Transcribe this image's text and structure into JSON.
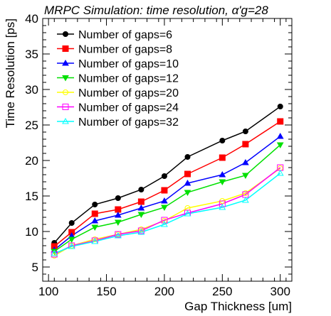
{
  "chart_data": {
    "type": "line",
    "title": "MRPC Simulation: time resolution, α'g=28",
    "xlabel": "Gap Thickness [um]",
    "ylabel": "Time Resolution [ps]",
    "xlim": [
      95,
      310
    ],
    "ylim": [
      3,
      40
    ],
    "xticks": [
      100,
      150,
      200,
      250,
      300
    ],
    "yticks": [
      5,
      10,
      15,
      20,
      25,
      30,
      35,
      40
    ],
    "grid": false,
    "legend_position": "top-left",
    "x": [
      105,
      120,
      140,
      160,
      180,
      200,
      220,
      250,
      270,
      300
    ],
    "series": [
      {
        "name": "Number of gaps=6",
        "color": "#000000",
        "marker": "circle",
        "values": [
          8.4,
          11.2,
          13.8,
          14.7,
          15.9,
          17.8,
          20.5,
          22.8,
          24.1,
          27.6
        ]
      },
      {
        "name": "Number of gaps=8",
        "color": "#ff0000",
        "marker": "square",
        "values": [
          7.9,
          9.9,
          12.5,
          13.1,
          14.2,
          15.8,
          18.1,
          20.4,
          22.3,
          25.5
        ]
      },
      {
        "name": "Number of gaps=10",
        "color": "#0000ff",
        "marker": "triangle-up",
        "values": [
          7.4,
          9.4,
          11.5,
          12.3,
          13.3,
          14.3,
          16.8,
          18.0,
          19.7,
          23.4
        ]
      },
      {
        "name": "Number of gaps=12",
        "color": "#00e000",
        "marker": "triangle-down",
        "values": [
          7.2,
          8.9,
          10.6,
          11.3,
          12.4,
          13.4,
          15.5,
          17.0,
          17.9,
          22.2
        ]
      },
      {
        "name": "Number of gaps=20",
        "color": "#ffff00",
        "marker": "circle-open",
        "values": [
          6.6,
          8.0,
          8.9,
          9.6,
          10.3,
          11.5,
          13.3,
          14.3,
          15.4,
          18.9
        ]
      },
      {
        "name": "Number of gaps=24",
        "color": "#ff00ff",
        "marker": "square-open",
        "values": [
          6.8,
          8.0,
          8.7,
          9.6,
          10.1,
          11.6,
          12.6,
          13.9,
          15.2,
          19.0
        ]
      },
      {
        "name": "Number of gaps=32",
        "color": "#00ffff",
        "marker": "triangle-open",
        "values": [
          6.9,
          7.9,
          8.6,
          9.4,
          9.9,
          11.0,
          12.5,
          13.4,
          14.4,
          18.2
        ]
      }
    ]
  }
}
